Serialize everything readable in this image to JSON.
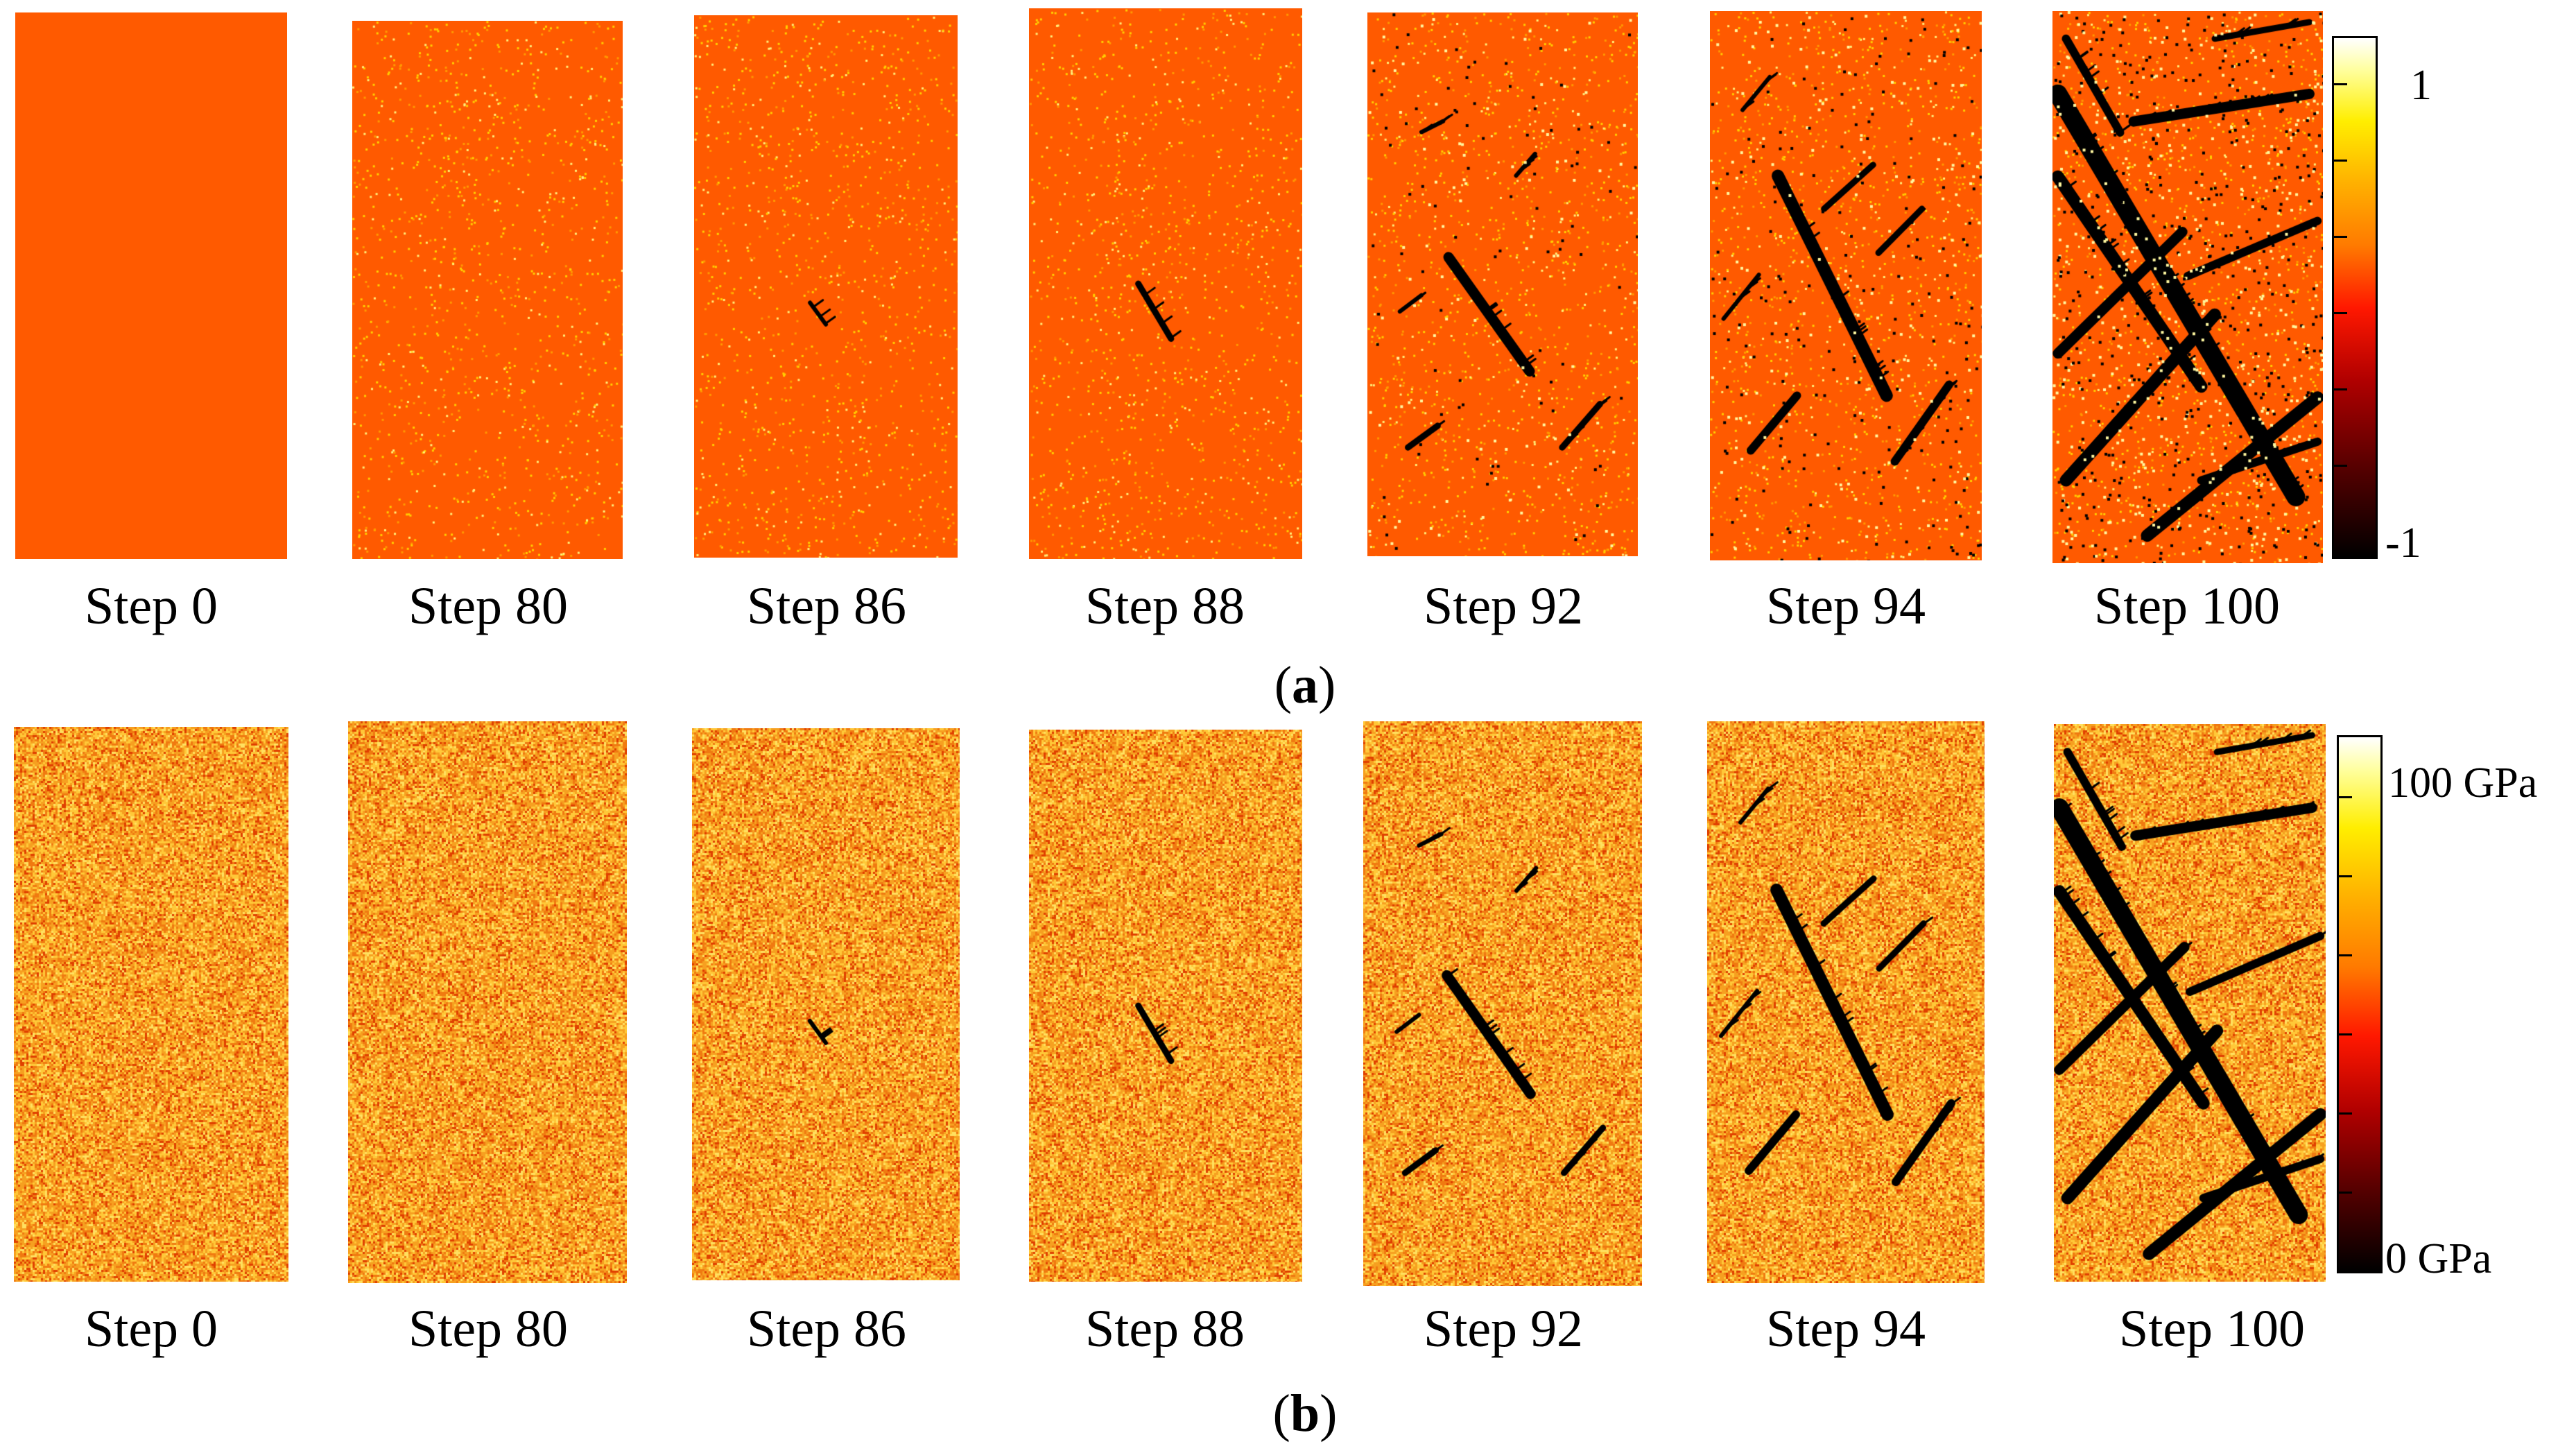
{
  "figure": {
    "row_a": {
      "caption_letter": "a",
      "panels": [
        {
          "label": "Step 0",
          "step": 0
        },
        {
          "label": "Step 80",
          "step": 80
        },
        {
          "label": "Step 86",
          "step": 86
        },
        {
          "label": "Step 88",
          "step": 88
        },
        {
          "label": "Step 92",
          "step": 92
        },
        {
          "label": "Step 94",
          "step": 94
        },
        {
          "label": "Step 100",
          "step": 100
        }
      ],
      "colorbar": {
        "max_label": "1",
        "min_label": "-1"
      }
    },
    "row_b": {
      "caption_letter": "b",
      "panels": [
        {
          "label": "Step 0",
          "step": 0
        },
        {
          "label": "Step 80",
          "step": 80
        },
        {
          "label": "Step 86",
          "step": 86
        },
        {
          "label": "Step 88",
          "step": 88
        },
        {
          "label": "Step 92",
          "step": 92
        },
        {
          "label": "Step 94",
          "step": 94
        },
        {
          "label": "Step 100",
          "step": 100
        }
      ],
      "colorbar": {
        "max_label": "100 GPa",
        "min_label": "0 GPa"
      }
    },
    "colors": {
      "background_a": "#ff5a00",
      "colormap": [
        "#000000",
        "#8b0000",
        "#ff0000",
        "#ff8000",
        "#ffff00",
        "#ffffff"
      ]
    }
  }
}
